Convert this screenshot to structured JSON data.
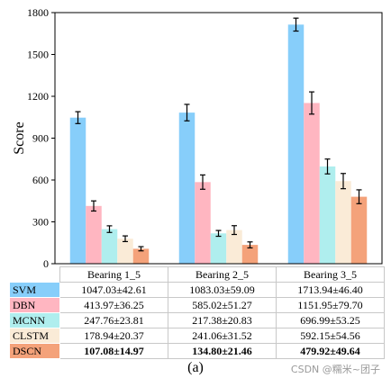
{
  "chart_data": {
    "type": "bar",
    "ylabel": "Score",
    "ylim": [
      0,
      1800
    ],
    "yticks": [
      0,
      300,
      600,
      900,
      1200,
      1500,
      1800
    ],
    "categories": [
      "Bearing 1_5",
      "Bearing 2_5",
      "Bearing 3_5"
    ],
    "series": [
      {
        "name": "SVM",
        "color": "#87CEFA",
        "values": [
          1047.03,
          1083.03,
          1713.94
        ],
        "errors": [
          42.61,
          59.09,
          46.4
        ],
        "labels": [
          "1047.03±42.61",
          "1083.03±59.09",
          "1713.94±46.40"
        ]
      },
      {
        "name": "DBN",
        "color": "#FFB6C1",
        "values": [
          413.97,
          585.02,
          1151.95
        ],
        "errors": [
          36.25,
          51.27,
          79.7
        ],
        "labels": [
          "413.97±36.25",
          "585.02±51.27",
          "1151.95±79.70"
        ]
      },
      {
        "name": "MCNN",
        "color": "#AFEEEE",
        "values": [
          247.76,
          217.38,
          696.99
        ],
        "errors": [
          23.81,
          20.83,
          53.25
        ],
        "labels": [
          "247.76±23.81",
          "217.38±20.83",
          "696.99±53.25"
        ]
      },
      {
        "name": "CLSTM",
        "color": "#FAEBD7",
        "values": [
          178.94,
          241.06,
          592.15
        ],
        "errors": [
          20.37,
          31.52,
          54.56
        ],
        "labels": [
          "178.94±20.37",
          "241.06±31.52",
          "592.15±54.56"
        ]
      },
      {
        "name": "DSCN",
        "color": "#F4A27A",
        "values": [
          107.08,
          134.8,
          479.92
        ],
        "errors": [
          14.97,
          21.46,
          49.64
        ],
        "labels": [
          "107.08±14.97",
          "134.80±21.46",
          "479.92±49.64"
        ],
        "bold": true
      }
    ],
    "grid": false,
    "legend": "table-below"
  },
  "caption": "(a)",
  "watermark": "CSDN @糯米~团子"
}
